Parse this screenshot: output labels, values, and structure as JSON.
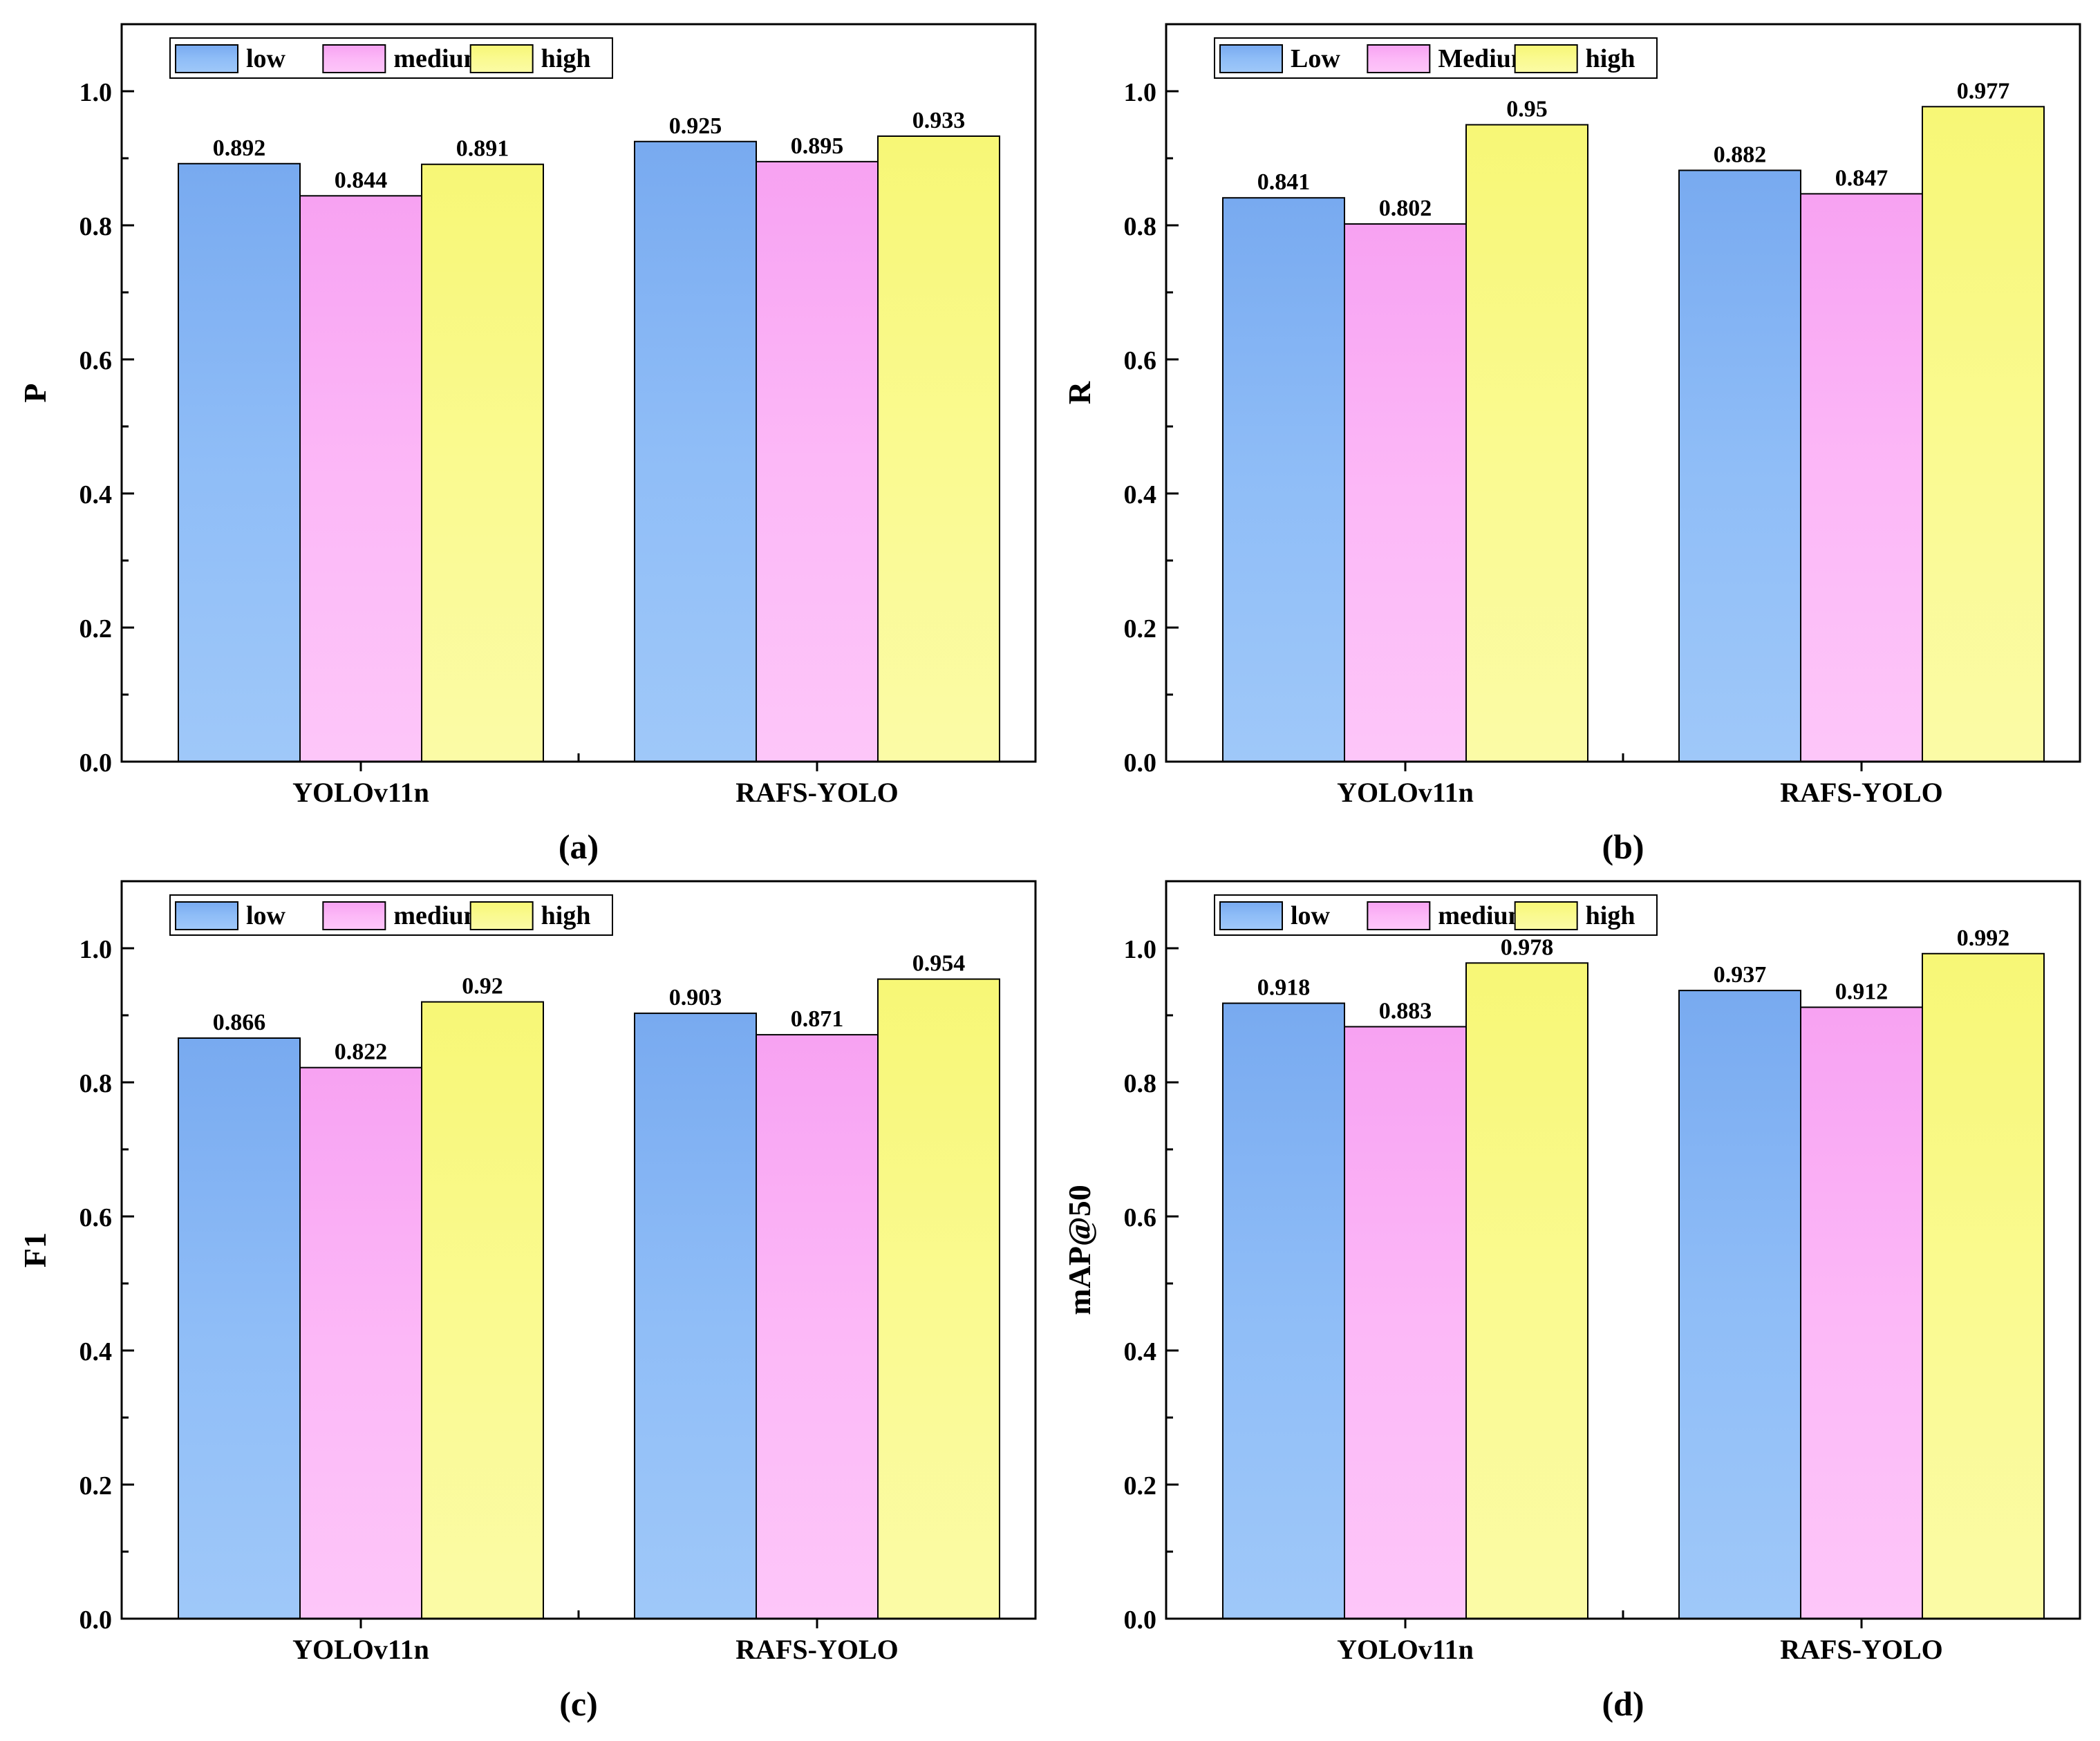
{
  "chart_data": [
    {
      "id": "a",
      "type": "bar",
      "panel_label": "(a)",
      "ylabel": "P",
      "xlabel": "",
      "ylim": [
        0,
        1.1
      ],
      "yticks": [
        "0.0",
        "0.2",
        "0.4",
        "0.6",
        "0.8",
        "1.0"
      ],
      "categories": [
        "YOLOv11n",
        "RAFS-YOLO"
      ],
      "legend_position": "top-left",
      "series": [
        {
          "name": "low",
          "values": [
            0.892,
            0.925
          ],
          "labels": [
            "0.892",
            "0.925"
          ]
        },
        {
          "name": "medium",
          "values": [
            0.844,
            0.895
          ],
          "labels": [
            "0.844",
            "0.895"
          ]
        },
        {
          "name": "high",
          "values": [
            0.891,
            0.933
          ],
          "labels": [
            "0.891",
            "0.933"
          ]
        }
      ]
    },
    {
      "id": "b",
      "type": "bar",
      "panel_label": "(b)",
      "ylabel": "R",
      "xlabel": "",
      "ylim": [
        0,
        1.1
      ],
      "yticks": [
        "0.0",
        "0.2",
        "0.4",
        "0.6",
        "0.8",
        "1.0"
      ],
      "categories": [
        "YOLOv11n",
        "RAFS-YOLO"
      ],
      "legend_position": "top-left",
      "series": [
        {
          "name": "Low",
          "values": [
            0.841,
            0.882
          ],
          "labels": [
            "0.841",
            "0.882"
          ]
        },
        {
          "name": "Medium",
          "values": [
            0.802,
            0.847
          ],
          "labels": [
            "0.802",
            "0.847"
          ]
        },
        {
          "name": "high",
          "values": [
            0.95,
            0.977
          ],
          "labels": [
            "0.95",
            "0.977"
          ]
        }
      ]
    },
    {
      "id": "c",
      "type": "bar",
      "panel_label": "(c)",
      "ylabel": "F1",
      "xlabel": "",
      "ylim": [
        0,
        1.1
      ],
      "yticks": [
        "0.0",
        "0.2",
        "0.4",
        "0.6",
        "0.8",
        "1.0"
      ],
      "categories": [
        "YOLOv11n",
        "RAFS-YOLO"
      ],
      "legend_position": "top-left",
      "series": [
        {
          "name": "low",
          "values": [
            0.866,
            0.903
          ],
          "labels": [
            "0.866",
            "0.903"
          ]
        },
        {
          "name": "medium",
          "values": [
            0.822,
            0.871
          ],
          "labels": [
            "0.822",
            "0.871"
          ]
        },
        {
          "name": "high",
          "values": [
            0.92,
            0.954
          ],
          "labels": [
            "0.92",
            "0.954"
          ]
        }
      ]
    },
    {
      "id": "d",
      "type": "bar",
      "panel_label": "(d)",
      "ylabel": "mAP@50",
      "xlabel": "",
      "ylim": [
        0,
        1.1
      ],
      "yticks": [
        "0.0",
        "0.2",
        "0.4",
        "0.6",
        "0.8",
        "1.0"
      ],
      "categories": [
        "YOLOv11n",
        "RAFS-YOLO"
      ],
      "legend_position": "top-left",
      "series": [
        {
          "name": "low",
          "values": [
            0.918,
            0.937
          ],
          "labels": [
            "0.918",
            "0.937"
          ]
        },
        {
          "name": "medium",
          "values": [
            0.883,
            0.912
          ],
          "labels": [
            "0.883",
            "0.912"
          ]
        },
        {
          "name": "high",
          "values": [
            0.978,
            0.992
          ],
          "labels": [
            "0.978",
            "0.992"
          ]
        }
      ]
    }
  ],
  "colors": {
    "low": "#8ebbf7",
    "medium": "#fcb6f7",
    "high": "#fafa8e",
    "frame": "#000000"
  }
}
